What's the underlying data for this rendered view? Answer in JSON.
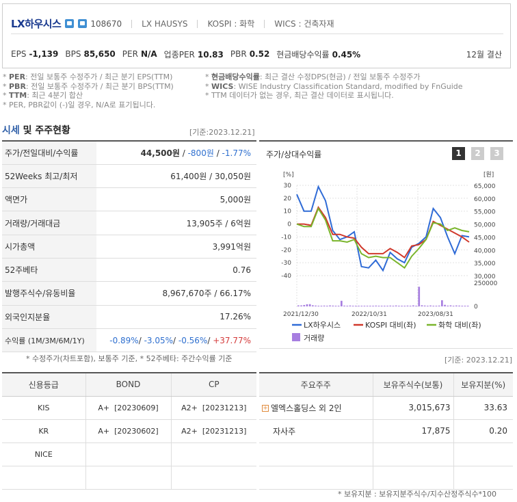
{
  "header": {
    "company_name": "LX하우시스",
    "code": "108670",
    "english_name": "LX HAUSYS",
    "market": "KOSPI : 화학",
    "wics": "WICS : 건축자재",
    "metrics": [
      {
        "label": "EPS",
        "value": "-1,139"
      },
      {
        "label": "BPS",
        "value": "85,650"
      },
      {
        "label": "PER",
        "value": "N/A"
      },
      {
        "label": "업종PER",
        "value": "10.83"
      },
      {
        "label": "PBR",
        "value": "0.52"
      },
      {
        "label": "현금배당수익률",
        "value": "0.45%"
      }
    ],
    "settlement": "12월 결산"
  },
  "notes": {
    "left": [
      {
        "key": "PER",
        "text": ": 전일 보통주 수정주가 / 최근 분기 EPS(TTM)"
      },
      {
        "key": "PBR",
        "text": ": 전일 보통주 수정주가 / 최근 분기 BPS(TTM)"
      },
      {
        "key": "TTM",
        "text": ": 최근 4분기 합산"
      },
      {
        "key": "",
        "text": "PER, PBR값이 (-)일 경우, N/A로 표기됩니다."
      }
    ],
    "right": [
      {
        "key": "현금배당수익률",
        "text": ": 최근 결산 수정DPS(현금) / 전일 보통주 수정주가"
      },
      {
        "key": "WICS",
        "text": ": WISE Industry Classification Standard, modified by FnGuide"
      },
      {
        "key": "",
        "text": "TTM 데이터가 없는 경우, 최근 결산 데이터로 표시됩니다."
      }
    ]
  },
  "market_section": {
    "title_blue": "시세",
    "title_rest": " 및 주주현황",
    "date": "[기준:2023.12.21]",
    "rows": [
      {
        "label": "주가/전일대비/수익률",
        "value": "44,500원",
        "change": "-800원",
        "rate": "-1.77%"
      },
      {
        "label": "52Weeks 최고/최저",
        "value": "61,400원 / 30,050원"
      },
      {
        "label": "액면가",
        "value": "5,000원"
      },
      {
        "label": "거래량/거래대금",
        "value": "13,905주 / 6억원"
      },
      {
        "label": "시가총액",
        "value": "3,991억원"
      },
      {
        "label": "52주베타",
        "value": "0.76"
      },
      {
        "label": "발행주식수/유동비율",
        "value": "8,967,670주 / 66.17%"
      },
      {
        "label": "외국인지분율",
        "value": "17.26%"
      },
      {
        "label": "수익률 (1M/3M/6M/1Y)",
        "r1": "-0.89%",
        "r2": "-3.05%",
        "r3": "-0.56%",
        "r4": "+37.77%"
      }
    ],
    "footnote": "* 수정주가(차트포함), 보통주 기준, * 52주베타: 주간수익률 기준"
  },
  "chart": {
    "title": "주가/상대수익률",
    "pages": [
      "1",
      "2",
      "3"
    ],
    "colors": {
      "stock": "#2f6bd6",
      "kospi": "#d0382b",
      "industry": "#7ab52c",
      "volume": "#a77ee0"
    }
  },
  "chart_data": {
    "type": "line",
    "left_axis_unit": "[%]",
    "right_axis_unit": "[원]",
    "x_ticks": [
      "2021/12/30",
      "2022/10/31",
      "2023/08/31"
    ],
    "left_ylim": [
      -40,
      30
    ],
    "left_ticks": [
      "30",
      "20",
      "10",
      "0",
      "-10",
      "-20",
      "-30",
      "-40"
    ],
    "right_ylim": [
      30000,
      65000
    ],
    "right_ticks": [
      "65,000",
      "60,000",
      "55,000",
      "50,000",
      "45,000",
      "40,000",
      "35,000",
      "30,000"
    ],
    "volume_ticks": [
      "250000",
      "0"
    ],
    "series": [
      {
        "name": "LX하우시스",
        "values": [
          23,
          10,
          10,
          29,
          18,
          -5,
          -12,
          -10,
          -6,
          -33,
          -34,
          -28,
          -36,
          -22,
          -27,
          -30,
          -18,
          -15,
          -10,
          12,
          5,
          -10,
          -23,
          -9,
          -10
        ]
      },
      {
        "name": "KOSPI 대비(좌)",
        "values": [
          0,
          0,
          -1,
          13,
          5,
          -8,
          -8,
          -10,
          -11,
          -18,
          -23,
          -23,
          -23,
          -19,
          -22,
          -26,
          -17,
          -16,
          -12,
          2,
          -1,
          -4,
          -7,
          -10,
          -14
        ]
      },
      {
        "name": "화학 대비(좌)",
        "values": [
          0,
          -2,
          -2,
          12,
          3,
          -13,
          -13,
          -14,
          -12,
          -23,
          -26,
          -25,
          -26,
          -26,
          -30,
          -34,
          -25,
          -19,
          -12,
          1,
          0,
          -5,
          -3,
          -5,
          -6
        ]
      }
    ],
    "volume": {
      "name": "거래량",
      "values": [
        18000,
        18000,
        25000,
        38000,
        40000,
        20000,
        15000,
        12000,
        12000,
        14000,
        12000,
        17000,
        14000,
        12000,
        10000,
        100000,
        14000,
        12000,
        15000,
        12000,
        10000,
        12000,
        10000,
        12000,
        8000,
        10000,
        12000,
        14000,
        12000,
        10000,
        10000,
        12000,
        14000,
        12000,
        16000,
        12000,
        10000,
        12000,
        14000,
        12000,
        18000,
        12000,
        350000,
        20000,
        15000,
        12000,
        16000,
        12000,
        10000,
        14000,
        110000,
        28000,
        14000,
        18000,
        12000,
        16000,
        14000,
        12000,
        10000,
        12000
      ]
    },
    "grid": true,
    "legend_position": "bottom"
  },
  "credit": {
    "headers": [
      "신용등급",
      "BOND",
      "CP"
    ],
    "rows": [
      {
        "agency": "KIS",
        "bond_grade": "A+",
        "bond_date": "[20230609]",
        "cp_grade": "A2+",
        "cp_date": "[20231213]"
      },
      {
        "agency": "KR",
        "bond_grade": "A+",
        "bond_date": "[20230602]",
        "cp_grade": "A2+",
        "cp_date": "[20231213]"
      },
      {
        "agency": "NICE",
        "bond_grade": "",
        "bond_date": "",
        "cp_grade": "",
        "cp_date": ""
      }
    ]
  },
  "shareholders": {
    "date": "[기준: 2023.12.21]",
    "headers": [
      "주요주주",
      "보유주식수(보통)",
      "보유지분(%)"
    ],
    "rows": [
      {
        "name": "엘엑스홀딩스 외 2인",
        "shares": "3,015,673",
        "ratio": "33.63"
      },
      {
        "name": "자사주",
        "shares": "17,875",
        "ratio": "0.20"
      }
    ],
    "footnote": "* 보유지분 : 보유지분주식수/지수산정주식수*100"
  }
}
